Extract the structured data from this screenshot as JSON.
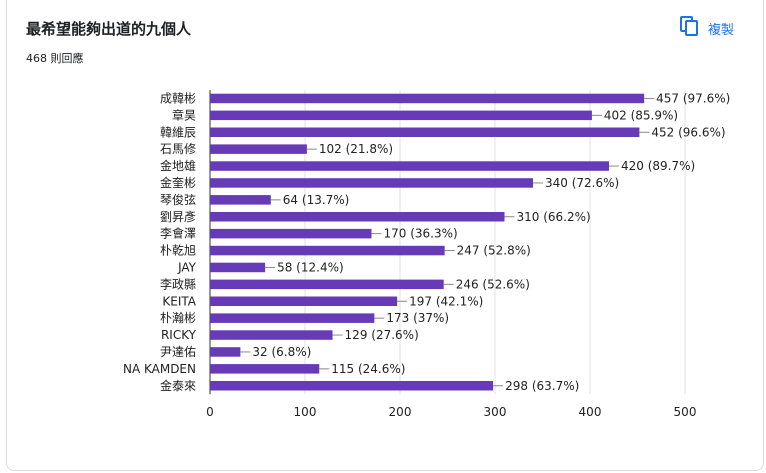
{
  "header": {
    "title": "最希望能夠出道的九個人",
    "responses": "468 則回應",
    "copy_label": "複製",
    "copy_icon": "copy-icon"
  },
  "colors": {
    "bar": "#673ab7",
    "accent": "#1a73e8",
    "grid": "#e0e0e0"
  },
  "chart_data": {
    "type": "bar",
    "orientation": "horizontal",
    "categories": [
      "成韓彬",
      "章昊",
      "韓維辰",
      "石馬修",
      "金地雄",
      "金奎彬",
      "琴俊弦",
      "劉昇彥",
      "李會澤",
      "朴乾旭",
      "JAY",
      "李政縣",
      "KEITA",
      "朴瀚彬",
      "RICKY",
      "尹達佑",
      "NA KAMDEN",
      "金泰來"
    ],
    "values": [
      457,
      402,
      452,
      102,
      420,
      340,
      64,
      310,
      170,
      247,
      58,
      246,
      197,
      173,
      129,
      32,
      115,
      298
    ],
    "labels": [
      "457 (97.6%)",
      "402 (85.9%)",
      "452 (96.6%)",
      "102 (21.8%)",
      "420 (89.7%)",
      "340 (72.6%)",
      "64 (13.7%)",
      "310 (66.2%)",
      "170 (36.3%)",
      "247 (52.8%)",
      "58 (12.4%)",
      "246 (52.6%)",
      "197 (42.1%)",
      "173 (37%)",
      "129 (27.6%)",
      "32 (6.8%)",
      "115 (24.6%)",
      "298 (63.7%)"
    ],
    "xlim": [
      0,
      500
    ],
    "xticks": [
      "0",
      "100",
      "200",
      "300",
      "400",
      "500"
    ],
    "grid": true,
    "legend": "none"
  }
}
